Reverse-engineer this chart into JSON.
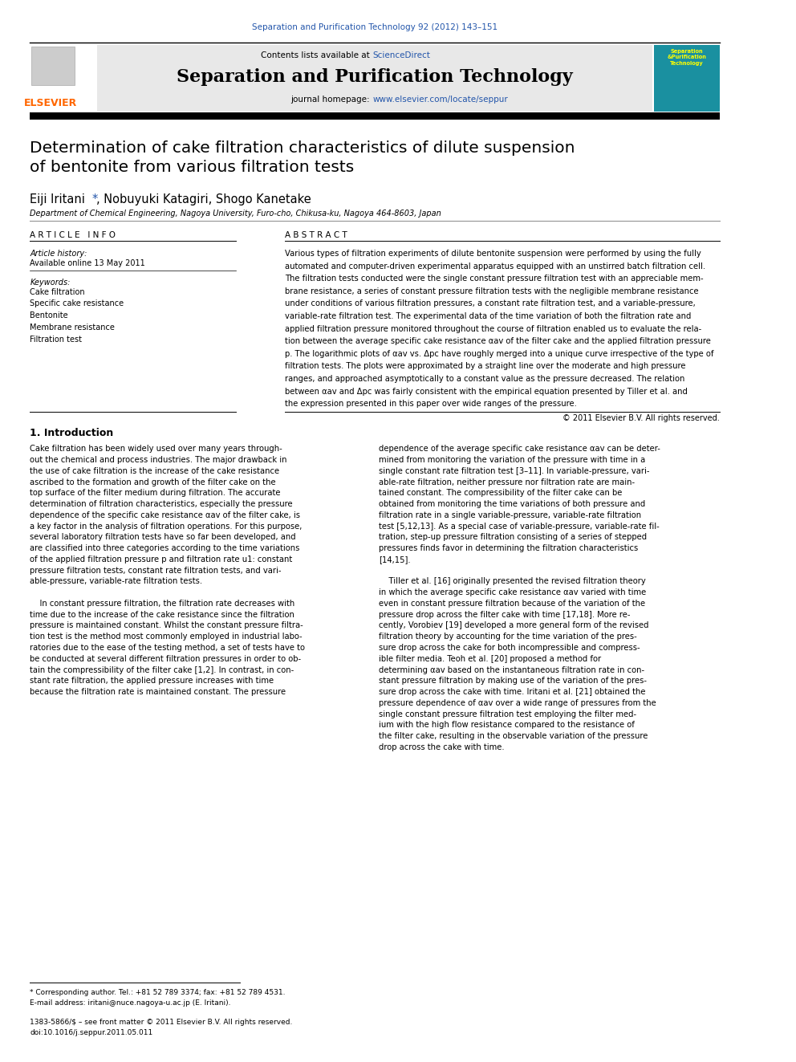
{
  "page_width": 9.92,
  "page_height": 13.23,
  "background_color": "#ffffff",
  "journal_ref_text": "Separation and Purification Technology 92 (2012) 143–151",
  "journal_ref_color": "#2255aa",
  "header_bg_color": "#e8e8e8",
  "header_title": "Separation and Purification Technology",
  "link_color": "#2255aa",
  "elsevier_color": "#ff6600",
  "elsevier_text": "ELSEVIER",
  "article_title": "Determination of cake filtration characteristics of dilute suspension\nof bentonite from various filtration tests",
  "affiliation": "Department of Chemical Engineering, Nagoya University, Furo-cho, Chikusa-ku, Nagoya 464-8603, Japan",
  "article_info_title": "A R T I C L E   I N F O",
  "abstract_title": "A B S T R A C T",
  "article_history_label": "Article history:",
  "available_online": "Available online 13 May 2011",
  "keywords_label": "Keywords:",
  "keywords": [
    "Cake filtration",
    "Specific cake resistance",
    "Bentonite",
    "Membrane resistance",
    "Filtration test"
  ],
  "copyright_text": "© 2011 Elsevier B.V. All rights reserved.",
  "intro_heading": "1. Introduction",
  "footnote_star": "* Corresponding author. Tel.: +81 52 789 3374; fax: +81 52 789 4531.",
  "footnote_email": "E-mail address: iritani@nuce.nagoya-u.ac.jp (E. Iritani).",
  "footer_issn": "1383-5866/$ – see front matter © 2011 Elsevier B.V. All rights reserved.",
  "footer_doi": "doi:10.1016/j.seppur.2011.05.011"
}
